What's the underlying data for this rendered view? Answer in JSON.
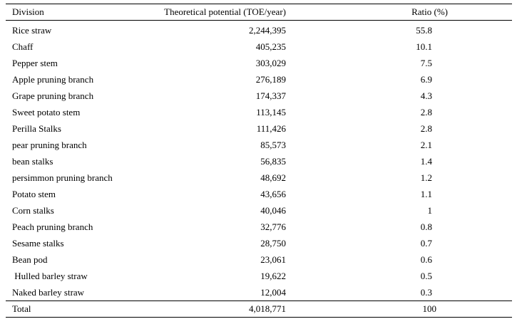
{
  "headers": {
    "division": "Division",
    "potential": "Theoretical potential (TOE/year)",
    "ratio": "Ratio (%)"
  },
  "rows": [
    {
      "division": "Rice straw",
      "potential": "2,244,395",
      "ratio": "55.8"
    },
    {
      "division": "Chaff",
      "potential": "405,235",
      "ratio": "10.1"
    },
    {
      "division": "Pepper stem",
      "potential": "303,029",
      "ratio": "7.5"
    },
    {
      "division": "Apple pruning branch",
      "potential": "276,189",
      "ratio": "6.9"
    },
    {
      "division": "Grape pruning branch",
      "potential": "174,337",
      "ratio": "4.3"
    },
    {
      "division": "Sweet potato stem",
      "potential": "113,145",
      "ratio": "2.8"
    },
    {
      "division": "Perilla Stalks",
      "potential": "111,426",
      "ratio": "2.8"
    },
    {
      "division": "pear pruning branch",
      "potential": "85,573",
      "ratio": "2.1"
    },
    {
      "division": "bean stalks",
      "potential": "56,835",
      "ratio": "1.4"
    },
    {
      "division": "persimmon pruning branch",
      "potential": "48,692",
      "ratio": "1.2"
    },
    {
      "division": "Potato stem",
      "potential": "43,656",
      "ratio": "1.1"
    },
    {
      "division": "Corn stalks",
      "potential": "40,046",
      "ratio": "1"
    },
    {
      "division": "Peach pruning branch",
      "potential": "32,776",
      "ratio": "0.8"
    },
    {
      "division": "Sesame stalks",
      "potential": "28,750",
      "ratio": "0.7"
    },
    {
      "division": "Bean pod",
      "potential": "23,061",
      "ratio": "0.6"
    },
    {
      "division": " Hulled barley straw",
      "potential": "19,622",
      "ratio": "0.5"
    },
    {
      "division": "Naked barley straw",
      "potential": "12,004",
      "ratio": "0.3"
    }
  ],
  "total": {
    "division": "Total",
    "potential": "4,018,771",
    "ratio": "100"
  }
}
